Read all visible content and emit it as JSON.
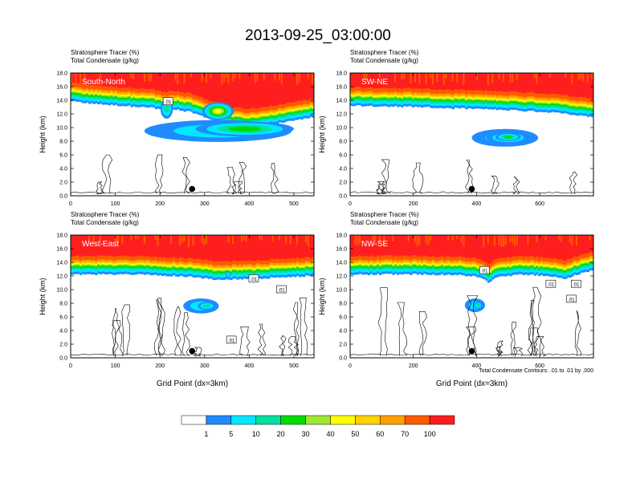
{
  "title": "2013-09-25_03:00:00",
  "colors": {
    "levels": [
      "#ffffff",
      "#1e8cff",
      "#00e8ff",
      "#00e0a0",
      "#00dc00",
      "#a0e632",
      "#ffff00",
      "#ffd200",
      "#ffa000",
      "#ff5a00",
      "#ff1e1e"
    ],
    "contour": "#000000"
  },
  "colorbar": {
    "labels": [
      "1",
      "5",
      "10",
      "20",
      "30",
      "40",
      "50",
      "60",
      "70",
      "100"
    ]
  },
  "footnote": "Total Condensate Contours: .01 to .01 by .000",
  "chart_data": [
    {
      "type": "heatmap",
      "panel_label": "South-North",
      "subtitle_line1": "Stratosphere Tracer   (%)",
      "subtitle_line2": "Total Condensate   (g/kg)",
      "ylabel": "Height (km)",
      "xlabel": "",
      "xlim": [
        0,
        545
      ],
      "ylim": [
        0,
        18
      ],
      "xticks": [
        "0",
        "100",
        "200",
        "300",
        "400",
        "500"
      ],
      "yticks": [
        "0.0",
        "2.0",
        "4.0",
        "6.0",
        "8.0",
        "10.0",
        "12.0",
        "14.0",
        "16.0",
        "18.0"
      ],
      "marker": {
        "x": 272,
        "y": 1.0
      },
      "contour_labels": [
        {
          "text": ".01",
          "x": 218,
          "y": 13.8
        }
      ],
      "tropopause": [
        [
          0,
          15.6
        ],
        [
          60,
          15.2
        ],
        [
          130,
          14.9
        ],
        [
          190,
          14.6
        ],
        [
          210,
          14.2
        ],
        [
          230,
          14.5
        ],
        [
          270,
          14.0
        ],
        [
          300,
          13.3
        ],
        [
          330,
          12.6
        ],
        [
          360,
          12.0
        ],
        [
          400,
          11.8
        ],
        [
          450,
          12.2
        ],
        [
          500,
          12.8
        ],
        [
          545,
          13.3
        ]
      ],
      "blobs": [
        {
          "x": 330,
          "y": 9.5,
          "rx": 165,
          "ry": 1.6,
          "v": 2
        },
        {
          "x": 390,
          "y": 9.8,
          "rx": 110,
          "ry": 1.1,
          "v": 4
        },
        {
          "x": 330,
          "y": 12.4,
          "rx": 35,
          "ry": 1.3,
          "v": 6
        },
        {
          "x": 215,
          "y": 12.8,
          "rx": 14,
          "ry": 1.5,
          "v": 3
        }
      ]
    },
    {
      "type": "heatmap",
      "panel_label": "SW-NE",
      "subtitle_line1": "Stratosphere Tracer   (%)",
      "subtitle_line2": "Total Condensate   (g/kg)",
      "ylabel": "Height (km)",
      "xlabel": "",
      "xlim": [
        0,
        770
      ],
      "ylim": [
        0,
        18
      ],
      "xticks": [
        "0",
        "200",
        "400",
        "600"
      ],
      "yticks": [
        "0.0",
        "2.0",
        "4.0",
        "6.0",
        "8.0",
        "10.0",
        "12.0",
        "14.0",
        "16.0",
        "18.0"
      ],
      "marker": {
        "x": 385,
        "y": 1.0
      },
      "contour_labels": [],
      "tropopause": [
        [
          0,
          15.0
        ],
        [
          100,
          14.9
        ],
        [
          200,
          14.8
        ],
        [
          300,
          14.6
        ],
        [
          400,
          14.5
        ],
        [
          500,
          14.3
        ],
        [
          600,
          14.1
        ],
        [
          700,
          13.7
        ],
        [
          770,
          13.3
        ]
      ],
      "blobs": [
        {
          "x": 490,
          "y": 8.5,
          "rx": 105,
          "ry": 1.3,
          "v": 2
        },
        {
          "x": 500,
          "y": 8.5,
          "rx": 70,
          "ry": 0.9,
          "v": 3
        },
        {
          "x": 500,
          "y": 8.6,
          "rx": 40,
          "ry": 0.6,
          "v": 4
        }
      ]
    },
    {
      "type": "heatmap",
      "panel_label": "West-East",
      "subtitle_line1": "Stratosphere Tracer   (%)",
      "subtitle_line2": "Total Condensate   (g/kg)",
      "ylabel": "Height (km)",
      "xlabel": "Grid Point (dx=3km)",
      "xlim": [
        0,
        545
      ],
      "ylim": [
        0,
        18
      ],
      "xticks": [
        "0",
        "100",
        "200",
        "300",
        "400",
        "500"
      ],
      "yticks": [
        "0.0",
        "2.0",
        "4.0",
        "6.0",
        "8.0",
        "10.0",
        "12.0",
        "14.0",
        "16.0",
        "18.0"
      ],
      "marker": {
        "x": 272,
        "y": 1.0
      },
      "contour_labels": [
        {
          "text": ".01",
          "x": 410,
          "y": 11.6
        },
        {
          "text": ".01",
          "x": 472,
          "y": 10.0
        },
        {
          "text": ".01",
          "x": 360,
          "y": 2.6
        }
      ],
      "tropopause": [
        [
          0,
          14.0
        ],
        [
          100,
          14.0
        ],
        [
          200,
          13.9
        ],
        [
          270,
          13.6
        ],
        [
          300,
          13.4
        ],
        [
          330,
          13.2
        ],
        [
          400,
          13.3
        ],
        [
          450,
          13.5
        ],
        [
          500,
          13.7
        ],
        [
          545,
          13.8
        ]
      ],
      "blobs": [
        {
          "x": 292,
          "y": 7.6,
          "rx": 40,
          "ry": 1.1,
          "v": 2
        },
        {
          "x": 305,
          "y": 7.6,
          "rx": 20,
          "ry": 0.6,
          "v": 3
        },
        {
          "x": 353,
          "y": 12.2,
          "rx": 5,
          "ry": 0.6,
          "v": 2
        }
      ]
    },
    {
      "type": "heatmap",
      "panel_label": "NW-SE",
      "subtitle_line1": "Stratosphere Tracer   (%)",
      "subtitle_line2": "Total Condensate   (g/kg)",
      "ylabel": "Height (km)",
      "xlabel": "Grid Point (dx=3km)",
      "xlim": [
        0,
        770
      ],
      "ylim": [
        0,
        18
      ],
      "xticks": [
        "0",
        "200",
        "400",
        "600"
      ],
      "yticks": [
        "0.0",
        "2.0",
        "4.0",
        "6.0",
        "8.0",
        "10.0",
        "12.0",
        "14.0",
        "16.0",
        "18.0"
      ],
      "marker": {
        "x": 385,
        "y": 1.0
      },
      "contour_labels": [
        {
          "text": ".01",
          "x": 425,
          "y": 12.8
        },
        {
          "text": ".01",
          "x": 635,
          "y": 10.8
        },
        {
          "text": ".01",
          "x": 715,
          "y": 10.8
        },
        {
          "text": ".01",
          "x": 700,
          "y": 8.6
        }
      ],
      "tropopause": [
        [
          0,
          14.0
        ],
        [
          200,
          14.0
        ],
        [
          350,
          13.9
        ],
        [
          400,
          13.7
        ],
        [
          440,
          12.8
        ],
        [
          460,
          13.6
        ],
        [
          550,
          14.0
        ],
        [
          620,
          13.8
        ],
        [
          680,
          13.4
        ],
        [
          720,
          14.0
        ],
        [
          770,
          14.6
        ]
      ],
      "blobs": [
        {
          "x": 395,
          "y": 7.7,
          "rx": 32,
          "ry": 1.0,
          "v": 2
        },
        {
          "x": 405,
          "y": 7.7,
          "rx": 14,
          "ry": 0.5,
          "v": 3
        }
      ]
    }
  ]
}
